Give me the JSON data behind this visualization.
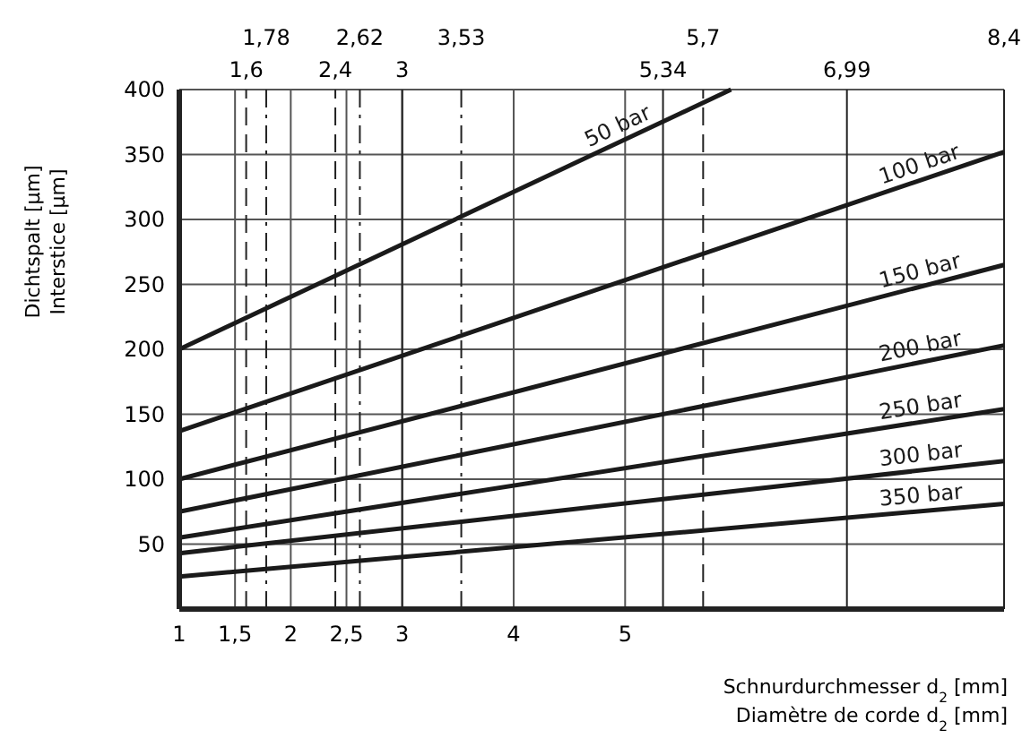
{
  "chart_data": {
    "type": "line",
    "xlabel": "Schnurdurchmesser d$_{2}$ [mm]\nDiamètre de corde d$_{2}$ [mm]",
    "ylabel": "Dichtspalt [µm]\nInterstice [µm]",
    "x": [
      1,
      8.4
    ],
    "series": [
      {
        "name": "50 bar",
        "color": "#1a1a1a",
        "x": [
          1,
          5.95
        ],
        "values": [
          200,
          400
        ]
      },
      {
        "name": "100 bar",
        "color": "#1a1a1a",
        "values": [
          137,
          352
        ]
      },
      {
        "name": "150 bar",
        "color": "#1a1a1a",
        "values": [
          100,
          265
        ]
      },
      {
        "name": "200 bar",
        "color": "#1a1a1a",
        "values": [
          75,
          203
        ]
      },
      {
        "name": "250 bar",
        "color": "#1a1a1a",
        "values": [
          55,
          154
        ]
      },
      {
        "name": "300 bar",
        "color": "#1a1a1a",
        "values": [
          43,
          114
        ]
      },
      {
        "name": "350 bar",
        "color": "#1a1a1a",
        "values": [
          25,
          81
        ]
      }
    ],
    "xlim": [
      1,
      8.4
    ],
    "xticks": [
      1,
      {
        "value": 1.5,
        "label": "1,5"
      },
      2,
      {
        "value": 2.5,
        "label": "2,5"
      },
      3,
      4,
      5
    ],
    "ylim": [
      0,
      400
    ],
    "yticks": [
      50,
      100,
      150,
      200,
      250,
      300,
      350,
      400
    ],
    "ref_lines": [
      {
        "axis": "x",
        "value": 1.6,
        "label": "1,6",
        "line_style": "dashed"
      },
      {
        "axis": "x",
        "value": 1.78,
        "label": "1,78",
        "line_style": "dashdot"
      },
      {
        "axis": "x",
        "value": 2.4,
        "label": "2,4",
        "line_style": "dashed"
      },
      {
        "axis": "x",
        "value": 2.62,
        "label": "2,62",
        "line_style": "dashdot"
      },
      {
        "axis": "x",
        "value": 3,
        "label": "3",
        "line_style": "solid"
      },
      {
        "axis": "x",
        "value": 3.53,
        "label": "3,53",
        "line_style": "dashdot"
      },
      {
        "axis": "x",
        "value": 5.34,
        "label": "5,34",
        "line_style": "solid"
      },
      {
        "axis": "x",
        "value": 5.7,
        "label": "5,7",
        "line_style": "dashed"
      },
      {
        "axis": "x",
        "value": 6.99,
        "label": "6,99",
        "line_style": "solid"
      },
      {
        "axis": "x",
        "value": 8.4,
        "label": "8,4",
        "line_style": "solid"
      }
    ],
    "grid": true,
    "marker": "none",
    "line_style": "solid"
  }
}
